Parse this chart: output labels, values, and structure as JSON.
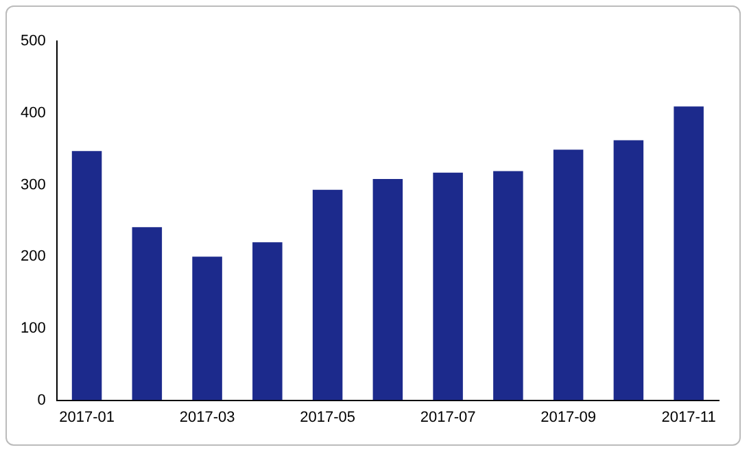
{
  "chart_data": {
    "type": "bar",
    "categories": [
      "2017-01",
      null,
      "2017-03",
      null,
      "2017-05",
      null,
      "2017-07",
      null,
      "2017-09",
      null,
      "2017-11"
    ],
    "values": [
      347,
      241,
      200,
      220,
      293,
      308,
      317,
      319,
      349,
      362,
      409
    ],
    "color": "#1c2a8c",
    "ylim": [
      0,
      500
    ],
    "yticks": [
      0,
      100,
      200,
      300,
      400,
      500
    ],
    "grid": false,
    "legend": false
  }
}
